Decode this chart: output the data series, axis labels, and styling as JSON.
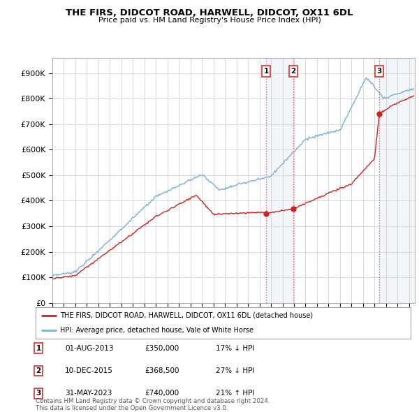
{
  "title": "THE FIRS, DIDCOT ROAD, HARWELL, DIDCOT, OX11 6DL",
  "subtitle": "Price paid vs. HM Land Registry's House Price Index (HPI)",
  "ylabel_ticks": [
    "£0",
    "£100K",
    "£200K",
    "£300K",
    "£400K",
    "£500K",
    "£600K",
    "£700K",
    "£800K",
    "£900K"
  ],
  "ytick_vals": [
    0,
    100000,
    200000,
    300000,
    400000,
    500000,
    600000,
    700000,
    800000,
    900000
  ],
  "ylim": [
    0,
    960000
  ],
  "xlim_start": 1995.0,
  "xlim_end": 2026.5,
  "hpi_color": "#7bafd4",
  "price_color": "#cc2222",
  "vline_color": "#ff4444",
  "vline_style": ":",
  "shade_color": "#ccddf0",
  "transactions": [
    {
      "label": "1",
      "date_num": 2013.583,
      "price": 350000,
      "pct": "17%",
      "dir": "↓",
      "date_str": "01-AUG-2013",
      "price_str": "£350,000"
    },
    {
      "label": "2",
      "date_num": 2015.94,
      "price": 368500,
      "pct": "27%",
      "dir": "↓",
      "date_str": "10-DEC-2015",
      "price_str": "£368,500"
    },
    {
      "label": "3",
      "date_num": 2023.415,
      "price": 740000,
      "pct": "21%",
      "dir": "↑",
      "date_str": "31-MAY-2023",
      "price_str": "£740,000"
    }
  ],
  "legend_house_label": "THE FIRS, DIDCOT ROAD, HARWELL, DIDCOT, OX11 6DL (detached house)",
  "legend_hpi_label": "HPI: Average price, detached house, Vale of White Horse",
  "footer": "Contains HM Land Registry data © Crown copyright and database right 2024.\nThis data is licensed under the Open Government Licence v3.0.",
  "bg_color": "#ffffff",
  "plot_bg_color": "#ffffff",
  "grid_color": "#cccccc"
}
